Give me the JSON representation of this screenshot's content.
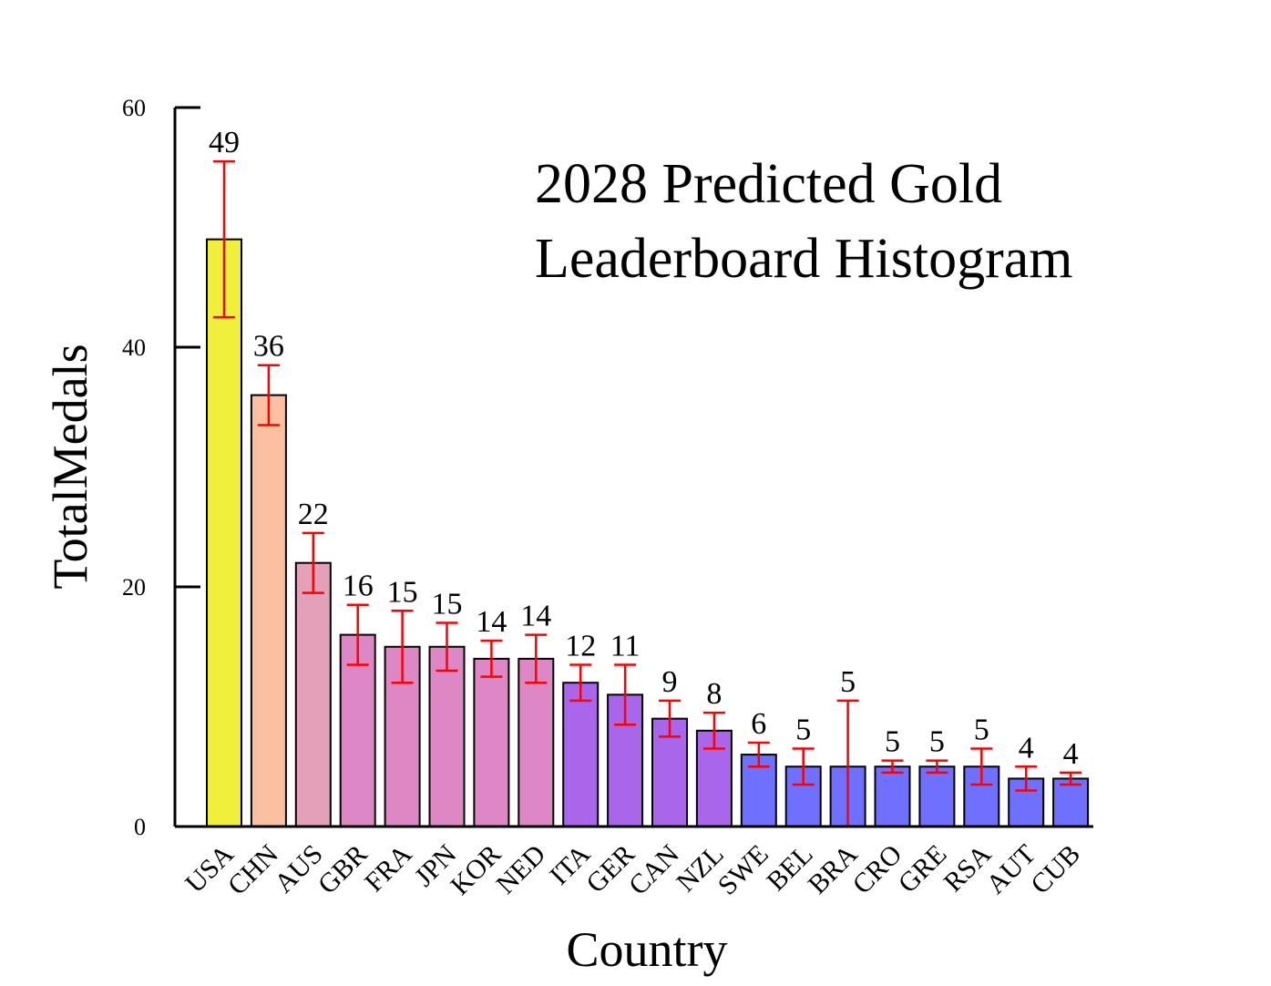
{
  "chart_data": {
    "type": "bar",
    "title_lines": [
      "2028 Predicted Gold",
      "Leaderboard Histogram"
    ],
    "xlabel": "Country",
    "ylabel": "TotalMedals",
    "ylim": [
      0,
      60
    ],
    "yticks": [
      0,
      20,
      40,
      60
    ],
    "categories": [
      "USA",
      "CHN",
      "AUS",
      "GBR",
      "FRA",
      "JPN",
      "KOR",
      "NED",
      "ITA",
      "GER",
      "CAN",
      "NZL",
      "SWE",
      "BEL",
      "BRA",
      "CRO",
      "GRE",
      "RSA",
      "AUT",
      "CUB"
    ],
    "values": [
      49,
      36,
      22,
      16,
      15,
      15,
      14,
      14,
      12,
      11,
      9,
      8,
      6,
      5,
      5,
      5,
      5,
      5,
      4,
      4
    ],
    "error_low": [
      42.5,
      33.5,
      19.5,
      13.5,
      12,
      13,
      12.5,
      12,
      10.5,
      8.5,
      7.5,
      6.5,
      5,
      3.5,
      0,
      4.5,
      4.5,
      3.5,
      3,
      3.5
    ],
    "error_high": [
      55.5,
      38.5,
      24.5,
      18.5,
      18,
      17,
      15.5,
      16,
      13.5,
      13.5,
      10.5,
      9.5,
      7,
      6.5,
      10.5,
      5.5,
      5.5,
      6.5,
      5,
      4.5
    ],
    "bar_colors": [
      "#f0f03c",
      "#fbbfa2",
      "#e4a0b8",
      "#dd88c4",
      "#dd88c4",
      "#dd88c4",
      "#dd88c4",
      "#dd88c4",
      "#a966ea",
      "#a966ea",
      "#a966ea",
      "#a966ea",
      "#7070ff",
      "#7070ff",
      "#7070ff",
      "#7070ff",
      "#7070ff",
      "#7070ff",
      "#7070ff",
      "#7070ff"
    ],
    "error_color": "#ff0000",
    "grid": false,
    "legend": "none"
  }
}
